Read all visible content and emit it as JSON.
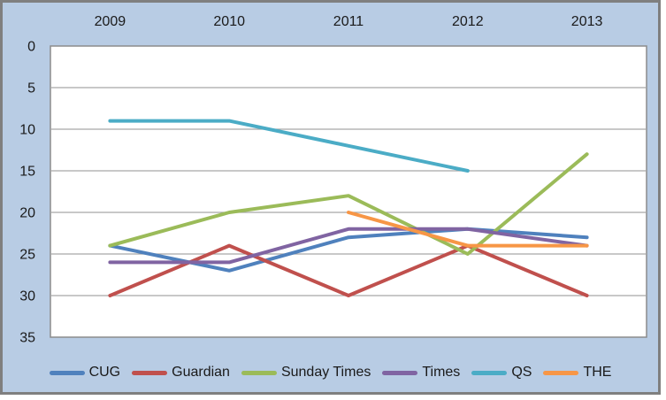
{
  "chart": {
    "background_color": "#B8CCE4",
    "plot_background_color": "#FFFFFF",
    "gridline_color": "#A6A6A6",
    "plot_border_color": "#8C8C8C",
    "frame_border_color": "#7F7F7F",
    "text_color": "#1A1A1A"
  },
  "chart_data": {
    "type": "line",
    "title": "",
    "categories": [
      "2009",
      "2010",
      "2011",
      "2012",
      "2013"
    ],
    "x_axis_position": "top",
    "y_axis": {
      "min": 0,
      "max": 35,
      "ticks": [
        0,
        5,
        10,
        15,
        20,
        25,
        30,
        35
      ],
      "inverted": true,
      "label": ""
    },
    "grid": true,
    "legend_position": "bottom",
    "series": [
      {
        "name": "CUG",
        "color": "#4F81BD",
        "values": [
          24,
          27,
          23,
          22,
          23
        ]
      },
      {
        "name": "Guardian",
        "color": "#C0504D",
        "values": [
          30,
          24,
          30,
          24,
          30
        ]
      },
      {
        "name": "Sunday Times",
        "color": "#9BBB59",
        "values": [
          24,
          20,
          18,
          25,
          13
        ]
      },
      {
        "name": "Times",
        "color": "#8064A2",
        "values": [
          26,
          26,
          22,
          22,
          24
        ]
      },
      {
        "name": "QS",
        "color": "#4BACC6",
        "values": [
          9,
          9,
          12,
          15,
          null
        ]
      },
      {
        "name": "THE",
        "color": "#F79646",
        "values": [
          null,
          null,
          20,
          24,
          24
        ]
      }
    ]
  }
}
